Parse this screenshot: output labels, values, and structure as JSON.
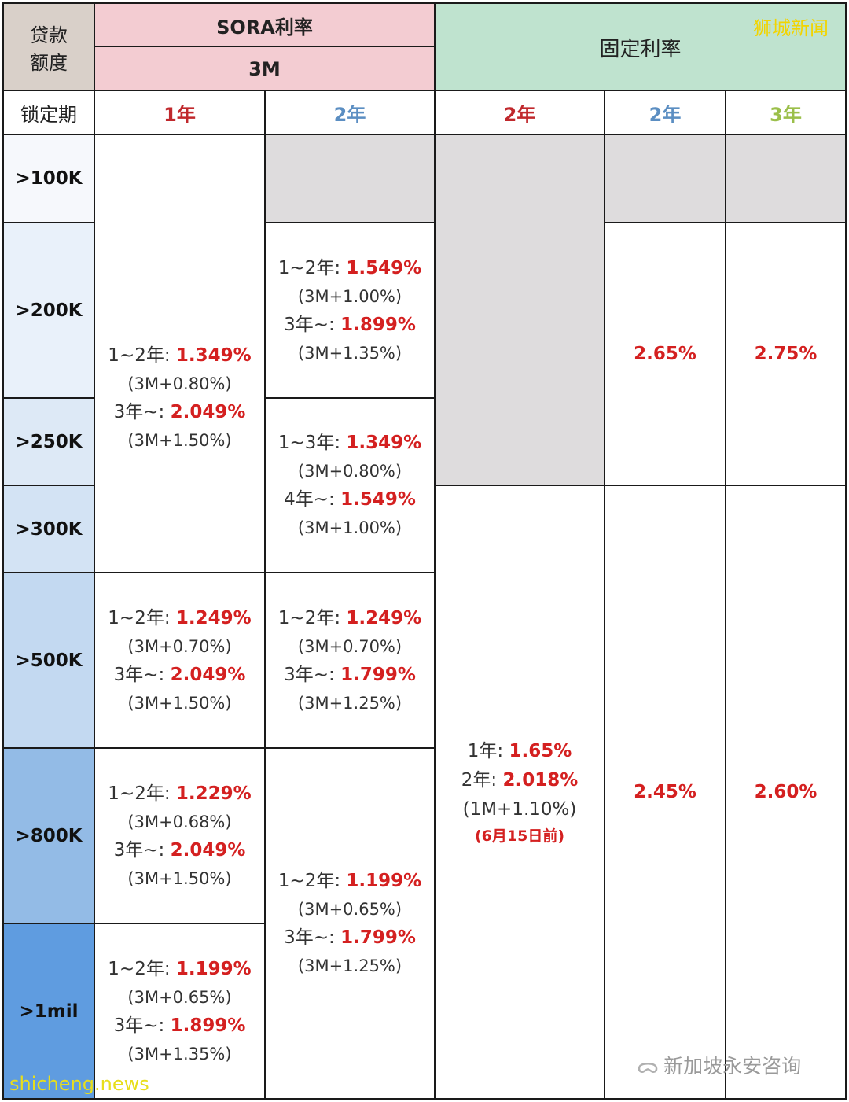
{
  "colors": {
    "red": "#d42020",
    "blue_year": "#5b8ec2",
    "green_year": "#9bbf4a",
    "header_tan": "#d9d0c9",
    "header_pink": "#f3ccd2",
    "header_green": "#bfe3cf",
    "gray": "#dedcdd"
  },
  "header": {
    "amount_label_1": "贷款",
    "amount_label_2": "额度",
    "sora_title": "SORA利率",
    "sora_sub": "3M",
    "fixed_title": "固定利率",
    "brand_tag": "狮城新闻",
    "lock_label": "锁定期",
    "years": [
      "1年",
      "2年",
      "2年",
      "2年",
      "3年"
    ]
  },
  "rows": [
    ">100K",
    ">200K",
    ">250K",
    ">300K",
    ">500K",
    ">800K",
    ">1mil"
  ],
  "sora_1y": {
    "a": {
      "l1k": "1~2年: ",
      "l1v": "1.349%",
      "l2": "(3M+0.80%)",
      "l3k": "3年~: ",
      "l3v": "2.049%",
      "l4": "(3M+1.50%)"
    },
    "b": {
      "l1k": "1~2年: ",
      "l1v": "1.249%",
      "l2": "(3M+0.70%)",
      "l3k": "3年~: ",
      "l3v": "2.049%",
      "l4": "(3M+1.50%)"
    },
    "c": {
      "l1k": "1~2年: ",
      "l1v": "1.229%",
      "l2": "(3M+0.68%)",
      "l3k": "3年~: ",
      "l3v": "2.049%",
      "l4": "(3M+1.50%)"
    },
    "d": {
      "l1k": "1~2年: ",
      "l1v": "1.199%",
      "l2": "(3M+0.65%)",
      "l3k": "3年~: ",
      "l3v": "1.899%",
      "l4": "(3M+1.35%)"
    }
  },
  "sora_2y": {
    "a": {
      "l1k": "1~2年: ",
      "l1v": "1.549%",
      "l2": "(3M+1.00%)",
      "l3k": "3年~: ",
      "l3v": "1.899%",
      "l4": "(3M+1.35%)"
    },
    "b": {
      "l1k": "1~3年: ",
      "l1v": "1.349%",
      "l2": "(3M+0.80%)",
      "l3k": "4年~: ",
      "l3v": "1.549%",
      "l4": "(3M+1.00%)"
    },
    "c": {
      "l1k": "1~2年: ",
      "l1v": "1.249%",
      "l2": "(3M+0.70%)",
      "l3k": "3年~: ",
      "l3v": "1.799%",
      "l4": "(3M+1.25%)"
    },
    "d": {
      "l1k": "1~2年: ",
      "l1v": "1.199%",
      "l2": "(3M+0.65%)",
      "l3k": "3年~: ",
      "l3v": "1.799%",
      "l4": "(3M+1.25%)"
    }
  },
  "fixed_2y_a": {
    "l1k": "1年: ",
    "l1v": "1.65%",
    "l2k": "2年: ",
    "l2v": "2.018%",
    "l3": "(1M+1.10%)",
    "note": "(6月15日前)"
  },
  "fixed_2y_b": {
    "top": "2.65%",
    "bottom": "2.45%"
  },
  "fixed_3y": {
    "top": "2.75%",
    "bottom": "2.60%"
  },
  "watermarks": {
    "wechat": "新加坡永安咨询",
    "site": "shicheng.news"
  }
}
